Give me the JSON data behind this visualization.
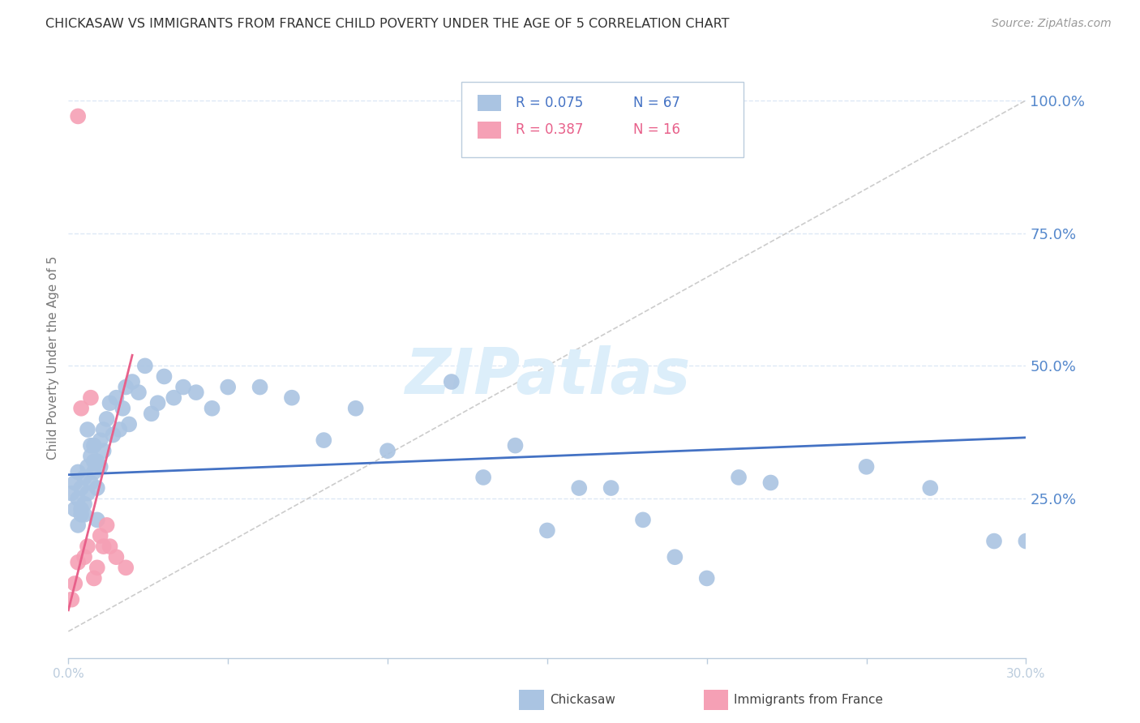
{
  "title": "CHICKASAW VS IMMIGRANTS FROM FRANCE CHILD POVERTY UNDER THE AGE OF 5 CORRELATION CHART",
  "source": "Source: ZipAtlas.com",
  "ylabel": "Child Poverty Under the Age of 5",
  "ylabel_right_ticks": [
    "100.0%",
    "75.0%",
    "50.0%",
    "25.0%"
  ],
  "ylabel_right_vals": [
    1.0,
    0.75,
    0.5,
    0.25
  ],
  "legend_r1": "R = 0.075",
  "legend_n1": "N = 67",
  "legend_r2": "R = 0.387",
  "legend_n2": "N = 16",
  "chickasaw_color": "#aac4e2",
  "france_color": "#f5a0b5",
  "trend_blue": "#4472c4",
  "trend_pink": "#e8608a",
  "watermark_color": "#dceefa",
  "background_color": "#ffffff",
  "grid_color": "#dde8f5",
  "right_axis_color": "#5588cc",
  "xmin": 0.0,
  "xmax": 0.3,
  "ymin": -0.05,
  "ymax": 1.08,
  "chickasaw_x": [
    0.001,
    0.002,
    0.002,
    0.003,
    0.003,
    0.004,
    0.004,
    0.005,
    0.005,
    0.006,
    0.006,
    0.007,
    0.007,
    0.008,
    0.008,
    0.009,
    0.009,
    0.01,
    0.01,
    0.011,
    0.011,
    0.012,
    0.013,
    0.014,
    0.015,
    0.016,
    0.017,
    0.018,
    0.019,
    0.02,
    0.022,
    0.024,
    0.026,
    0.028,
    0.03,
    0.033,
    0.036,
    0.04,
    0.045,
    0.05,
    0.06,
    0.07,
    0.08,
    0.09,
    0.1,
    0.12,
    0.14,
    0.16,
    0.18,
    0.2,
    0.13,
    0.15,
    0.17,
    0.19,
    0.21,
    0.22,
    0.25,
    0.27,
    0.29,
    0.3,
    0.003,
    0.004,
    0.005,
    0.006,
    0.007,
    0.008,
    0.009
  ],
  "chickasaw_y": [
    0.26,
    0.23,
    0.28,
    0.25,
    0.3,
    0.22,
    0.27,
    0.29,
    0.24,
    0.31,
    0.26,
    0.33,
    0.28,
    0.3,
    0.35,
    0.27,
    0.32,
    0.36,
    0.31,
    0.38,
    0.34,
    0.4,
    0.43,
    0.37,
    0.44,
    0.38,
    0.42,
    0.46,
    0.39,
    0.47,
    0.45,
    0.5,
    0.41,
    0.43,
    0.48,
    0.44,
    0.46,
    0.45,
    0.42,
    0.46,
    0.46,
    0.44,
    0.36,
    0.42,
    0.34,
    0.47,
    0.35,
    0.27,
    0.21,
    0.1,
    0.29,
    0.19,
    0.27,
    0.14,
    0.29,
    0.28,
    0.31,
    0.27,
    0.17,
    0.17,
    0.2,
    0.23,
    0.22,
    0.38,
    0.35,
    0.32,
    0.21
  ],
  "france_x": [
    0.001,
    0.002,
    0.003,
    0.003,
    0.004,
    0.005,
    0.006,
    0.007,
    0.008,
    0.009,
    0.01,
    0.011,
    0.012,
    0.013,
    0.015,
    0.018
  ],
  "france_y": [
    0.06,
    0.09,
    0.13,
    0.97,
    0.42,
    0.14,
    0.16,
    0.44,
    0.1,
    0.12,
    0.18,
    0.16,
    0.2,
    0.16,
    0.14,
    0.12
  ],
  "xtick_positions": [
    0.0,
    0.05,
    0.1,
    0.15,
    0.2,
    0.25,
    0.3
  ],
  "xtick_labels": [
    "0.0%",
    "",
    "",
    "",
    "",
    "",
    "30.0%"
  ]
}
